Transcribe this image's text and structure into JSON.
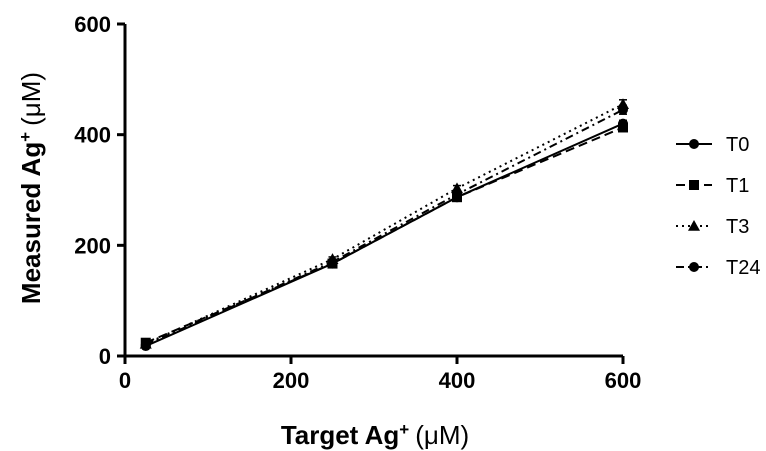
{
  "chart_data": {
    "type": "line",
    "xlabel": "Target Ag",
    "xlabel_sup": "+",
    "xlabel_unit": "(μM)",
    "ylabel": "Measured Ag",
    "ylabel_sup": "+",
    "ylabel_unit": "(μM)",
    "xlim": [
      0,
      600
    ],
    "ylim": [
      0,
      600
    ],
    "xticks": [
      0,
      200,
      400,
      600
    ],
    "yticks": [
      0,
      200,
      400,
      600
    ],
    "grid": false,
    "legend_position": "right",
    "series": [
      {
        "name": "T0",
        "marker": "circle",
        "dash": "solid",
        "x": [
          25,
          250,
          400,
          600
        ],
        "y": [
          18,
          167,
          287,
          420
        ],
        "err": [
          3,
          4,
          5,
          6
        ]
      },
      {
        "name": "T1",
        "marker": "square",
        "dash": "dashed",
        "x": [
          25,
          250,
          400,
          600
        ],
        "y": [
          24,
          167,
          287,
          413
        ],
        "err": [
          3,
          4,
          5,
          6
        ]
      },
      {
        "name": "T3",
        "marker": "triangle",
        "dash": "dotted",
        "x": [
          25,
          250,
          400,
          600
        ],
        "y": [
          22,
          175,
          303,
          455
        ],
        "err": [
          3,
          4,
          5,
          8
        ]
      },
      {
        "name": "T24",
        "marker": "circle",
        "dash": "dashdot",
        "x": [
          25,
          250,
          400,
          600
        ],
        "y": [
          20,
          170,
          292,
          445
        ],
        "err": [
          3,
          4,
          5,
          8
        ]
      }
    ]
  }
}
